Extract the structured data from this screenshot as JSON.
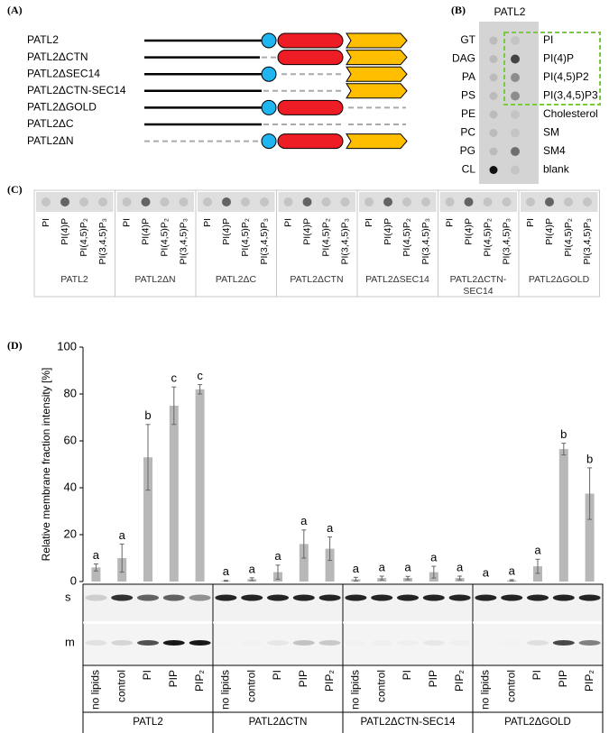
{
  "panel_a": {
    "label": "(A)",
    "constructs": [
      "PATL2",
      "PATL2ΔCTN",
      "PATL2ΔSEC14",
      "PATL2ΔCTN-SEC14",
      "PATL2ΔGOLD",
      "PATL2ΔC",
      "PATL2ΔN"
    ]
  },
  "panel_b": {
    "label": "(B)",
    "title": "PATL2",
    "left_lipids": [
      "GT",
      "DAG",
      "PA",
      "PS",
      "PE",
      "PC",
      "PG",
      "CL"
    ],
    "right_lipids": [
      "PI",
      "PI(4)P",
      "PI(4,5)P2",
      "PI(3,4,5)P3",
      "Cholesterol",
      "SM",
      "SM4",
      "blank"
    ]
  },
  "panel_c": {
    "label": "(C)",
    "lipids": [
      "PI",
      "PI(4)P",
      "PI(4,5)P₂",
      "PI(3,4,5)P₃"
    ],
    "constructs": [
      "PATL2",
      "PATL2ΔN",
      "PATL2ΔC",
      "PATL2ΔCTN",
      "PATL2ΔSEC14",
      "PATL2ΔCTN-SEC14",
      "PATL2ΔGOLD"
    ]
  },
  "chart_data": {
    "type": "bar",
    "panel_label": "(D)",
    "y_label": "Relative membrane fraction intensity [%]",
    "ylim": [
      0,
      100
    ],
    "yticks": [
      0,
      20,
      40,
      60,
      80,
      100
    ],
    "categories": [
      "no lipids",
      "control",
      "PI",
      "PIP",
      "PIP₂"
    ],
    "color": "#b8b8b8",
    "blot_rows": [
      "s",
      "m"
    ],
    "series": [
      {
        "name": "PATL2",
        "values": [
          6,
          10,
          53,
          75,
          82
        ],
        "errors": [
          1.5,
          6,
          14,
          8,
          2
        ],
        "letters": [
          "a",
          "a",
          "b",
          "c",
          "c"
        ]
      },
      {
        "name": "PATL2ΔCTN",
        "values": [
          0.3,
          1,
          4,
          16,
          14
        ],
        "errors": [
          0.2,
          0.6,
          3,
          6,
          5
        ],
        "letters": [
          "a",
          "a",
          "a",
          "a",
          "a"
        ]
      },
      {
        "name": "PATL2ΔCTN-SEC14",
        "values": [
          1,
          1.5,
          1.5,
          4,
          1.5
        ],
        "errors": [
          0.8,
          0.8,
          0.7,
          2.5,
          0.8
        ],
        "letters": [
          "a",
          "a",
          "a",
          "a",
          "a"
        ]
      },
      {
        "name": "PATL2ΔGOLD",
        "values": [
          0,
          0.5,
          6.5,
          56.5,
          37.5
        ],
        "errors": [
          0,
          0.3,
          3,
          2.5,
          11
        ],
        "letters": [
          "a",
          "a",
          "a",
          "b",
          "b"
        ]
      }
    ]
  }
}
